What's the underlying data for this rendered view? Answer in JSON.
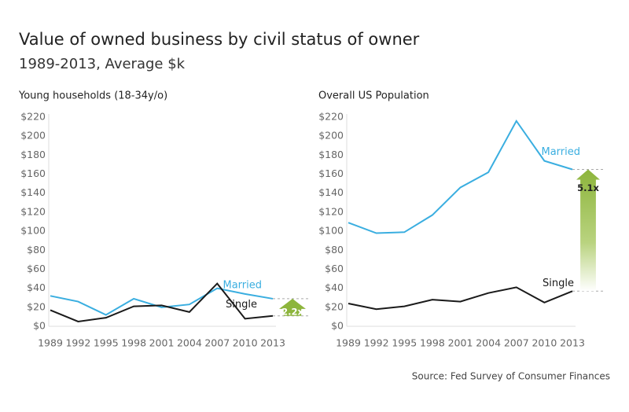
{
  "title": "Value of owned business by civil status of owner",
  "subtitle": "1989-2013, Average $k",
  "source": "Source: Fed Survey of Consumer Finances",
  "chart_data": [
    {
      "type": "line",
      "title": "Young households (18-34y/o)",
      "categories": [
        "1989",
        "1992",
        "1995",
        "1998",
        "2001",
        "2004",
        "2007",
        "2010",
        "2013"
      ],
      "series": [
        {
          "name": "Married",
          "color": "#3aaee0",
          "values": [
            32,
            26,
            12,
            29,
            20,
            23,
            40,
            34,
            29
          ]
        },
        {
          "name": "Single",
          "color": "#1a1a1a",
          "values": [
            17,
            5,
            9,
            21,
            22,
            15,
            45,
            8,
            11
          ]
        }
      ],
      "annotation": "2.2x",
      "ylim": [
        0,
        220
      ],
      "yticks": [
        {
          "value": 0,
          "label": "$0"
        },
        {
          "value": 20,
          "label": "$20"
        },
        {
          "value": 40,
          "label": "$40"
        },
        {
          "value": 60,
          "label": "$60"
        },
        {
          "value": 80,
          "label": "$80"
        },
        {
          "value": 100,
          "label": "$100"
        },
        {
          "value": 120,
          "label": "$120"
        },
        {
          "value": 140,
          "label": "$140"
        },
        {
          "value": 160,
          "label": "$160"
        },
        {
          "value": 180,
          "label": "$180"
        },
        {
          "value": 200,
          "label": "$200"
        },
        {
          "value": 220,
          "label": "$220"
        }
      ],
      "grid": false
    },
    {
      "type": "line",
      "title": "Overall US Population",
      "categories": [
        "1989",
        "1992",
        "1995",
        "1998",
        "2001",
        "2004",
        "2007",
        "2010",
        "2013"
      ],
      "series": [
        {
          "name": "Married",
          "color": "#3aaee0",
          "values": [
            109,
            98,
            99,
            117,
            146,
            162,
            216,
            174,
            165
          ]
        },
        {
          "name": "Single",
          "color": "#1a1a1a",
          "values": [
            24,
            18,
            21,
            28,
            26,
            35,
            41,
            25,
            37
          ]
        }
      ],
      "annotation": "5.1x",
      "ylim": [
        0,
        220
      ],
      "yticks": [
        {
          "value": 0,
          "label": "$0"
        },
        {
          "value": 20,
          "label": "$20"
        },
        {
          "value": 40,
          "label": "$40"
        },
        {
          "value": 60,
          "label": "$60"
        },
        {
          "value": 80,
          "label": "$80"
        },
        {
          "value": 100,
          "label": "$100"
        },
        {
          "value": 120,
          "label": "$120"
        },
        {
          "value": 140,
          "label": "$140"
        },
        {
          "value": 160,
          "label": "$160"
        },
        {
          "value": 180,
          "label": "$180"
        },
        {
          "value": 200,
          "label": "$200"
        },
        {
          "value": 220,
          "label": "$220"
        }
      ],
      "grid": false
    }
  ]
}
